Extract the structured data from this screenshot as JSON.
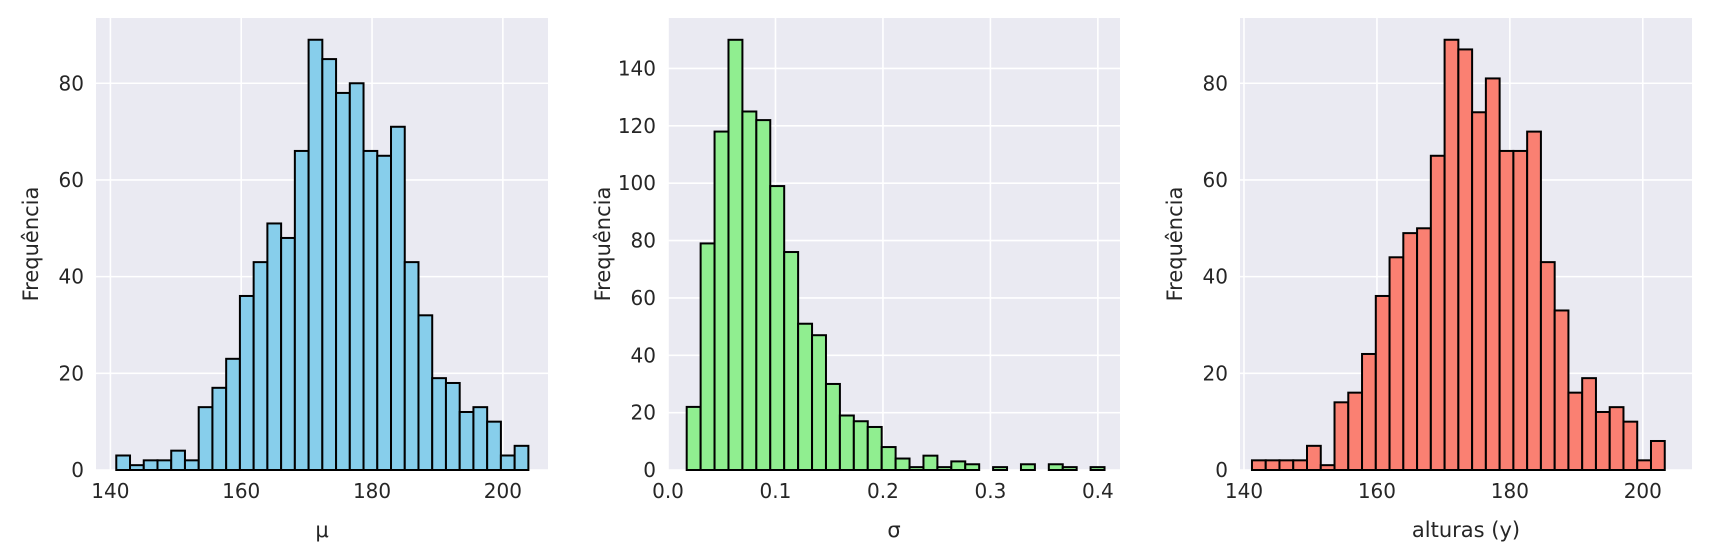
{
  "chart_data": [
    {
      "type": "bar",
      "xlabel": "μ",
      "ylabel": "Frequência",
      "xlim": [
        137.8,
        206.9
      ],
      "ylim": [
        0,
        93.5
      ],
      "xticks": [
        140,
        160,
        180,
        200
      ],
      "xtick_labels": [
        "140",
        "160",
        "180",
        "200"
      ],
      "yticks": [
        0,
        20,
        40,
        60,
        80
      ],
      "ytick_labels": [
        "0",
        "20",
        "40",
        "60",
        "80"
      ],
      "bin_start": 140.9,
      "bin_width": 2.1,
      "values": [
        3,
        1,
        2,
        2,
        4,
        2,
        13,
        17,
        23,
        36,
        43,
        51,
        48,
        66,
        89,
        85,
        78,
        80,
        66,
        65,
        71,
        43,
        32,
        19,
        18,
        12,
        13,
        10,
        3,
        5
      ],
      "color": "#87ceeb",
      "grid": true,
      "background": "#eaeaf2"
    },
    {
      "type": "bar",
      "xlabel": "σ",
      "ylabel": "Frequência",
      "xlim": [
        0.0,
        0.4206
      ],
      "ylim": [
        0,
        157.6
      ],
      "xticks": [
        0.0,
        0.1,
        0.2,
        0.3,
        0.4
      ],
      "xtick_labels": [
        "0.0",
        "0.1",
        "0.2",
        "0.3",
        "0.4"
      ],
      "yticks": [
        0,
        20,
        40,
        60,
        80,
        100,
        120,
        140
      ],
      "ytick_labels": [
        "0",
        "20",
        "40",
        "60",
        "80",
        "100",
        "120",
        "140"
      ],
      "bin_start": 0.0174,
      "bin_width": 0.01296,
      "values": [
        22,
        79,
        118,
        150,
        125,
        122,
        99,
        76,
        51,
        47,
        30,
        19,
        17,
        15,
        8,
        4,
        1,
        5,
        1,
        3,
        2,
        0,
        1,
        0,
        2,
        0,
        2,
        1,
        0,
        1
      ],
      "color": "#90ee90",
      "grid": true,
      "background": "#eaeaf2"
    },
    {
      "type": "bar",
      "xlabel": "alturas (y)",
      "ylabel": "Frequência",
      "xlim": [
        139.4,
        207.4
      ],
      "ylim": [
        0,
        93.5
      ],
      "xticks": [
        140,
        160,
        180,
        200
      ],
      "xtick_labels": [
        "140",
        "160",
        "180",
        "200"
      ],
      "yticks": [
        0,
        20,
        40,
        60,
        80
      ],
      "yticks_labels_note": "",
      "ytick_labels": [
        "0",
        "20",
        "40",
        "60",
        "80"
      ],
      "bin_start": 141.2,
      "bin_width": 2.07,
      "values": [
        2,
        2,
        2,
        2,
        5,
        1,
        14,
        16,
        24,
        36,
        44,
        49,
        50,
        65,
        89,
        87,
        74,
        81,
        66,
        66,
        70,
        43,
        33,
        16,
        19,
        12,
        13,
        10,
        2,
        6
      ],
      "color": "#fa8072",
      "grid": true,
      "background": "#eaeaf2"
    }
  ]
}
